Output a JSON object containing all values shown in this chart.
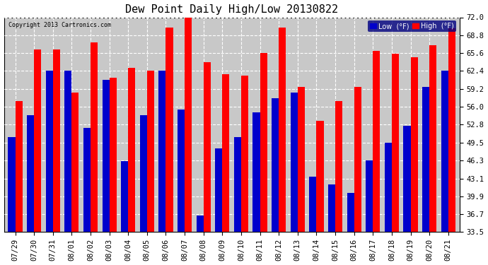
{
  "title": "Dew Point Daily High/Low 20130822",
  "copyright": "Copyright 2013 Cartronics.com",
  "dates": [
    "07/29",
    "07/30",
    "07/31",
    "08/01",
    "08/02",
    "08/03",
    "08/04",
    "08/05",
    "08/06",
    "08/07",
    "08/08",
    "08/09",
    "08/10",
    "08/11",
    "08/12",
    "08/13",
    "08/14",
    "08/15",
    "08/16",
    "08/17",
    "08/18",
    "08/19",
    "08/20",
    "08/21"
  ],
  "high": [
    57.0,
    66.2,
    66.2,
    58.5,
    67.5,
    61.2,
    63.0,
    62.5,
    70.2,
    72.5,
    64.0,
    61.8,
    61.5,
    65.6,
    70.2,
    59.5,
    53.5,
    57.0,
    59.5,
    66.0,
    65.5,
    64.8,
    67.0,
    70.0
  ],
  "low": [
    50.5,
    54.5,
    62.5,
    62.5,
    52.2,
    60.8,
    46.2,
    54.5,
    62.5,
    55.5,
    36.5,
    48.5,
    50.5,
    55.0,
    57.5,
    58.5,
    43.5,
    42.0,
    40.5,
    46.3,
    49.5,
    52.5,
    59.5,
    62.5
  ],
  "ymin": 33.5,
  "ylim": [
    33.5,
    72.0
  ],
  "yticks": [
    33.5,
    36.7,
    39.9,
    43.1,
    46.3,
    49.5,
    52.8,
    56.0,
    59.2,
    62.4,
    65.6,
    68.8,
    72.0
  ],
  "bar_width": 0.38,
  "high_color": "#FF0000",
  "low_color": "#0000CC",
  "bg_color": "#FFFFFF",
  "plot_bg_color": "#C8C8C8",
  "grid_color": "#FFFFFF",
  "title_fontsize": 11,
  "tick_fontsize": 7.5
}
